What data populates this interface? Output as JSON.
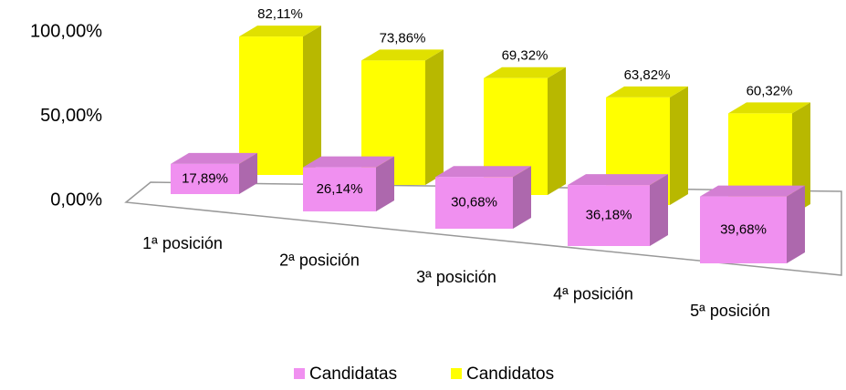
{
  "chart_data": {
    "type": "bar3d",
    "categories": [
      "1ª posición",
      "2ª posición",
      "3ª posición",
      "4ª posición",
      "5ª posición"
    ],
    "series": [
      {
        "name": "Candidatas",
        "color": "#f090f0",
        "values": [
          17.89,
          26.14,
          30.68,
          36.18,
          39.68
        ],
        "value_labels": [
          "17,89%",
          "26,14%",
          "30,68%",
          "36,18%",
          "39,68%"
        ]
      },
      {
        "name": "Candidatos",
        "color": "#ffff00",
        "values": [
          82.11,
          73.86,
          69.32,
          63.82,
          60.32
        ],
        "value_labels": [
          "82,11%",
          "73,86%",
          "69,32%",
          "63,82%",
          "60,32%"
        ]
      }
    ],
    "ylim": [
      0,
      100
    ],
    "yticks": [
      {
        "value": 0,
        "label": "0,00%"
      },
      {
        "value": 50,
        "label": "50,00%"
      },
      {
        "value": 100,
        "label": "100,00%"
      }
    ]
  }
}
